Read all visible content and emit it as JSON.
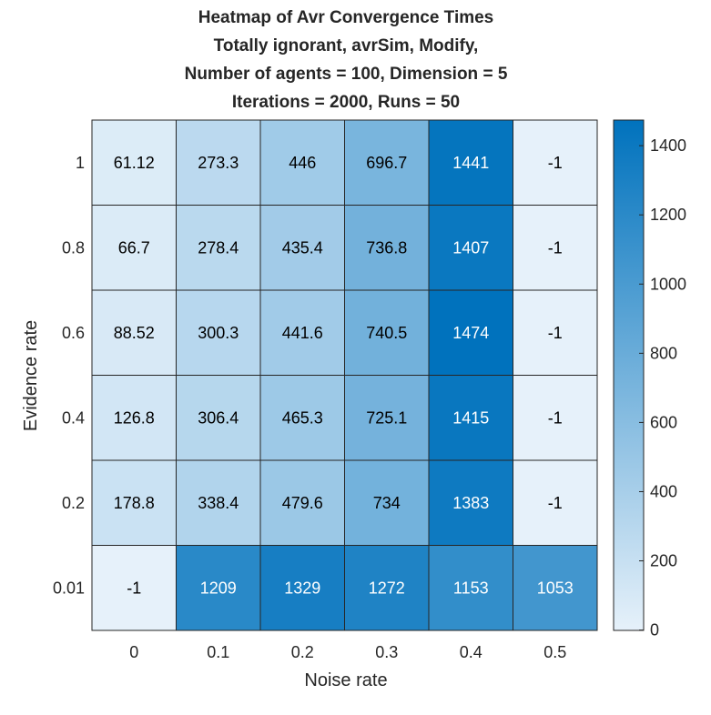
{
  "chart_data": {
    "type": "heatmap",
    "title_lines": [
      "Heatmap of Avr Convergence Times",
      "Totally ignorant, avrSim, Modify,",
      "Number of agents = 100, Dimension = 5",
      "Iterations = 2000, Runs = 50"
    ],
    "xlabel": "Noise rate",
    "ylabel": "Evidence rate",
    "x_categories": [
      "0",
      "0.1",
      "0.2",
      "0.3",
      "0.4",
      "0.5"
    ],
    "y_categories": [
      "1",
      "0.8",
      "0.6",
      "0.4",
      "0.2",
      "0.01"
    ],
    "cell_labels": [
      [
        "61.12",
        "273.3",
        "446",
        "696.7",
        "1441",
        "-1"
      ],
      [
        "66.7",
        "278.4",
        "435.4",
        "736.8",
        "1407",
        "-1"
      ],
      [
        "88.52",
        "300.3",
        "441.6",
        "740.5",
        "1474",
        "-1"
      ],
      [
        "126.8",
        "306.4",
        "465.3",
        "725.1",
        "1415",
        "-1"
      ],
      [
        "178.8",
        "338.4",
        "479.6",
        "734",
        "1383",
        "-1"
      ],
      [
        "-1",
        "1209",
        "1329",
        "1272",
        "1153",
        "1053"
      ]
    ],
    "values": [
      [
        61.12,
        273.3,
        446,
        696.7,
        1441,
        -1
      ],
      [
        66.7,
        278.4,
        435.4,
        736.8,
        1407,
        -1
      ],
      [
        88.52,
        300.3,
        441.6,
        740.5,
        1474,
        -1
      ],
      [
        126.8,
        306.4,
        465.3,
        725.1,
        1415,
        -1
      ],
      [
        178.8,
        338.4,
        479.6,
        734,
        1383,
        -1
      ],
      [
        -1,
        1209,
        1329,
        1272,
        1153,
        1053
      ]
    ],
    "colorbar": {
      "range": [
        -1,
        1474
      ],
      "ticks": [
        0,
        200,
        400,
        600,
        800,
        1000,
        1200,
        1400
      ],
      "tick_labels": [
        "0",
        "200",
        "400",
        "600",
        "800",
        "1000",
        "1200",
        "1400"
      ],
      "color_low": "#e6f1fa",
      "color_high": "#0072bd"
    },
    "grid": true,
    "legend": "colorbar-right"
  }
}
